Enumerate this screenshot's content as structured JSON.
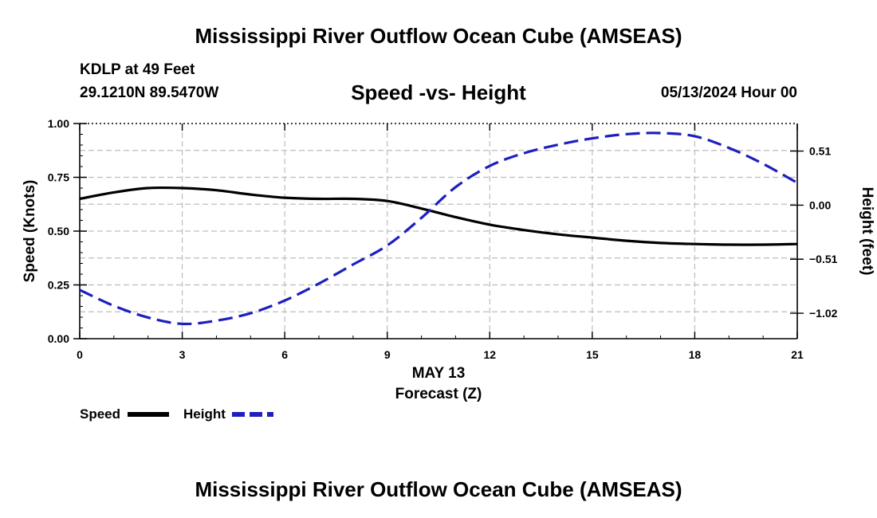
{
  "header": {
    "title": "Mississippi River Outflow Ocean Cube (AMSEAS)",
    "station_label": "KDLP at 49 Feet",
    "coordinates": "29.1210N  89.5470W",
    "date_hour": "05/13/2024 Hour 00",
    "footer_title": "Mississippi River Outflow Ocean Cube (AMSEAS)"
  },
  "chart_data": {
    "type": "line",
    "title": "Speed -vs- Height",
    "xlabel": "Forecast (Z)",
    "xdate_label": "MAY 13",
    "ylabel": "Speed (Knots)",
    "y2label": "Height (feet)",
    "xlim": [
      0,
      21
    ],
    "ylim": [
      0,
      1
    ],
    "y2lim": [
      -1.26,
      0.77
    ],
    "x_ticks": [
      0,
      3,
      6,
      9,
      12,
      15,
      18,
      21
    ],
    "x_tick_labels": [
      "0",
      "3",
      "6",
      "9",
      "12",
      "15",
      "18",
      "21"
    ],
    "y_ticks": [
      0,
      0.25,
      0.5,
      0.75,
      1.0
    ],
    "y_tick_labels": [
      "0.00",
      "0.25",
      "0.50",
      "0.75",
      "1.00"
    ],
    "y2_ticks": [
      0.51,
      0.0,
      -0.51,
      -1.02
    ],
    "y2_tick_labels": [
      "0.51",
      "0.00",
      "−0.51",
      "−1.02"
    ],
    "grid": true,
    "series": [
      {
        "name": "Speed",
        "axis": "left",
        "color": "#000000",
        "style": "solid",
        "x": [
          0,
          1,
          2,
          3,
          4,
          5,
          6,
          7,
          8,
          9,
          10,
          11,
          12,
          13,
          14,
          15,
          16,
          17,
          18,
          19,
          20,
          21
        ],
        "values": [
          0.65,
          0.68,
          0.7,
          0.7,
          0.69,
          0.67,
          0.655,
          0.65,
          0.65,
          0.64,
          0.605,
          0.565,
          0.53,
          0.505,
          0.485,
          0.47,
          0.455,
          0.445,
          0.44,
          0.437,
          0.437,
          0.44
        ]
      },
      {
        "name": "Height",
        "axis": "right",
        "color": "#1f1fbf",
        "style": "dashed",
        "x": [
          0,
          1,
          2,
          3,
          4,
          5,
          6,
          7,
          8,
          9,
          10,
          11,
          12,
          13,
          14,
          15,
          16,
          17,
          18,
          19,
          20,
          21
        ],
        "values": [
          -0.8,
          -0.95,
          -1.06,
          -1.12,
          -1.09,
          -1.02,
          -0.9,
          -0.74,
          -0.56,
          -0.38,
          -0.12,
          0.17,
          0.37,
          0.49,
          0.57,
          0.63,
          0.67,
          0.68,
          0.65,
          0.54,
          0.39,
          0.21
        ]
      }
    ],
    "legend": [
      {
        "label": "Speed",
        "color": "#000000",
        "style": "solid"
      },
      {
        "label": "Height",
        "color": "#1f1fbf",
        "style": "dashed"
      }
    ],
    "legend_position": "bottom-left"
  }
}
